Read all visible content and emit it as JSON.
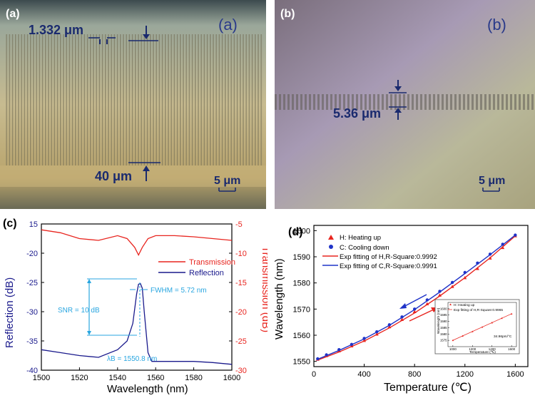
{
  "figure": {
    "panel_a": {
      "tag": "(a)",
      "inner_tag": "(a)",
      "pitch": "1.332 μm",
      "width": "40 μm",
      "scale": "5 μm"
    },
    "panel_b": {
      "tag": "(b)",
      "inner_tag": "(b)",
      "depth": "5.36 μm",
      "scale": "5 μm"
    },
    "panel_c": {
      "tag": "(c)",
      "snr": "SNR = 10 dB",
      "fwhm": "FWHM = 5.72 nm",
      "lambda": "λB = 1550.8 nm"
    },
    "panel_d": {
      "tag": "(d)",
      "inset_slope": "34.96pm/°C"
    }
  },
  "colors": {
    "reflection": "#1a1a8c",
    "transmission": "#e8251f",
    "fit_h": "#e8251f",
    "fit_c": "#1f33c8",
    "axis_left": "#1a1a8c",
    "axis_right": "#e8251f"
  },
  "chart_data": [
    {
      "type": "line",
      "xlabel": "Wavelength (nm)",
      "ylabel": "Reflection (dB)",
      "y2label": "Transmission (dB)",
      "xlim": [
        1500,
        1600
      ],
      "ylim": [
        -40,
        15
      ],
      "y2lim": [
        -30,
        -5
      ],
      "xticks": [
        1500,
        1520,
        1540,
        1560,
        1580,
        1600
      ],
      "yticks": [
        15,
        -20,
        -25,
        -30,
        -35,
        -40
      ],
      "y2ticks": [
        -5,
        -10,
        -15,
        -20,
        -25,
        -30
      ],
      "legend": [
        "Transmission",
        "Reflection"
      ],
      "legend_position": "top-right",
      "series": [
        {
          "name": "Reflection",
          "axis": "left",
          "x": [
            1500,
            1510,
            1520,
            1530,
            1540,
            1545,
            1548,
            1550,
            1551,
            1552,
            1553,
            1554,
            1556,
            1558,
            1562,
            1570,
            1580,
            1590,
            1600
          ],
          "y": [
            -36.5,
            -37,
            -37.5,
            -37.8,
            -36.5,
            -35,
            -32,
            -27,
            -25.3,
            -25.2,
            -26,
            -30,
            -37,
            -38.5,
            -38.5,
            -38.5,
            -38.5,
            -38.7,
            -39
          ]
        },
        {
          "name": "Transmission",
          "axis": "right",
          "x": [
            1500,
            1510,
            1520,
            1530,
            1540,
            1545,
            1549,
            1551,
            1553,
            1556,
            1560,
            1570,
            1580,
            1590,
            1600
          ],
          "y": [
            -6,
            -6.5,
            -7.5,
            -7.8,
            -7,
            -7.5,
            -9,
            -10.3,
            -9,
            -7.5,
            -7,
            -7,
            -7.2,
            -7.5,
            -7.8
          ]
        }
      ]
    },
    {
      "type": "scatter",
      "xlabel": "Temperature (℃)",
      "ylabel": "Wavelength (nm)",
      "xlim": [
        0,
        1700
      ],
      "ylim": [
        1548,
        1602
      ],
      "xticks": [
        0,
        400,
        800,
        1200,
        1600
      ],
      "yticks": [
        1550,
        1560,
        1570,
        1580,
        1590,
        1600
      ],
      "legend_position": "top-left",
      "series": [
        {
          "name": "H: Heating up",
          "marker": "triangle",
          "x": [
            30,
            100,
            200,
            300,
            400,
            500,
            600,
            700,
            800,
            900,
            1000,
            1100,
            1200,
            1300,
            1400,
            1500,
            1600
          ],
          "y": [
            1550.8,
            1552.2,
            1554.0,
            1555.9,
            1558.0,
            1560.4,
            1563.2,
            1566.0,
            1569.0,
            1572.0,
            1575.3,
            1578.6,
            1582.0,
            1585.5,
            1589.5,
            1593.5,
            1598.0
          ]
        },
        {
          "name": "C: Cooling down",
          "marker": "circle",
          "x": [
            30,
            100,
            200,
            300,
            400,
            500,
            600,
            700,
            800,
            900,
            1000,
            1100,
            1200,
            1300,
            1400,
            1500,
            1600
          ],
          "y": [
            1551.0,
            1552.5,
            1554.5,
            1556.5,
            1558.8,
            1561.3,
            1564.0,
            1567.0,
            1570.0,
            1573.5,
            1576.8,
            1580.2,
            1584.0,
            1587.6,
            1591.0,
            1594.8,
            1598.3
          ]
        },
        {
          "name": "Exp fitting of H,R-Square:0.9992",
          "style": "line",
          "x": [
            30,
            200,
            400,
            600,
            800,
            1000,
            1200,
            1400,
            1600
          ],
          "y": [
            1550.5,
            1553.6,
            1557.8,
            1562.8,
            1568.5,
            1575.0,
            1582.0,
            1589.6,
            1598.0
          ]
        },
        {
          "name": "Exp fitting of C,R-Square:0.9991",
          "style": "line",
          "x": [
            30,
            200,
            400,
            600,
            800,
            1000,
            1200,
            1400,
            1600
          ],
          "y": [
            1550.8,
            1554.2,
            1558.6,
            1563.8,
            1569.8,
            1576.5,
            1583.6,
            1590.8,
            1598.3
          ]
        }
      ]
    },
    {
      "type": "scatter",
      "inset": true,
      "xlabel": "Temperature (℃)",
      "ylabel": "Wavelength (nm)",
      "xlim": [
        950,
        1650
      ],
      "ylim": [
        1570,
        1605
      ],
      "xticks": [
        1000,
        1200,
        1400,
        1600
      ],
      "yticks": [
        1575,
        1580,
        1585,
        1590,
        1595,
        1600
      ],
      "series": [
        {
          "name": "H: Heating up",
          "marker": "triangle",
          "x": [
            1000,
            1100,
            1200,
            1300,
            1400,
            1500,
            1600
          ],
          "y": [
            1575,
            1578.5,
            1582,
            1585.5,
            1589,
            1592.5,
            1596
          ]
        },
        {
          "name": "Exp fitting of H,R-Square:0.9965",
          "style": "line",
          "x": [
            1000,
            1600
          ],
          "y": [
            1575,
            1596
          ]
        }
      ]
    }
  ]
}
